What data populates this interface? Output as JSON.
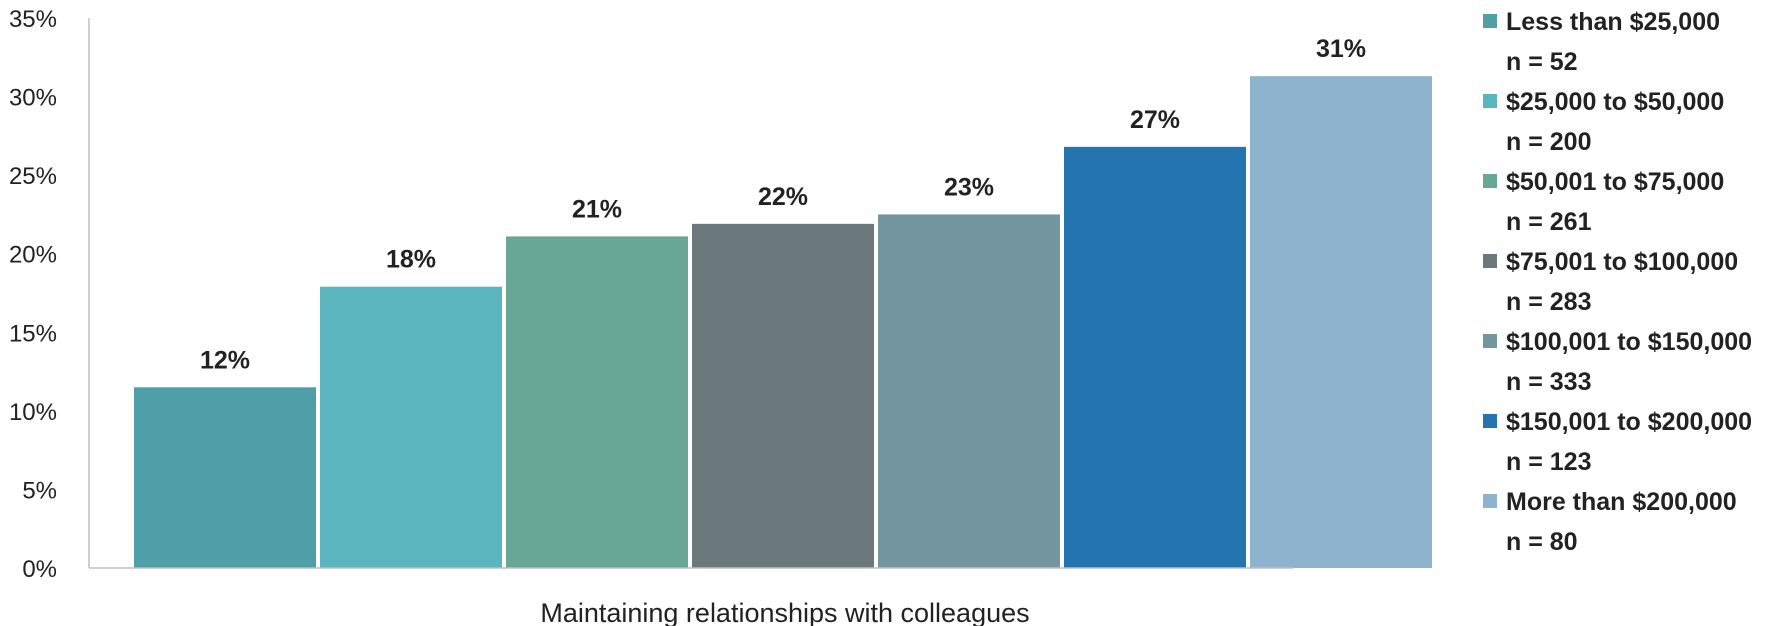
{
  "chart_data": {
    "type": "bar",
    "title": "",
    "xlabel": "Maintaining relationships with colleagues",
    "ylabel": "",
    "ylim": [
      0,
      35
    ],
    "yticks": [
      0,
      5,
      10,
      15,
      20,
      25,
      30,
      35
    ],
    "ytick_suffix": "%",
    "grid": false,
    "legend_position": "right",
    "series": [
      {
        "name": "Less than $25,000",
        "n_label": "n = 52",
        "value": 11.5,
        "label": "12%",
        "color": "#4e9fa8"
      },
      {
        "name": "$25,000 to $50,000",
        "n_label": "n = 200",
        "value": 17.9,
        "label": "18%",
        "color": "#5ab5bf"
      },
      {
        "name": "$50,001 to $75,000",
        "n_label": "n = 261",
        "value": 21.1,
        "label": "21%",
        "color": "#68a793"
      },
      {
        "name": "$75,001 to $100,000",
        "n_label": "n = 283",
        "value": 21.9,
        "label": "22%",
        "color": "#6c797c"
      },
      {
        "name": "$100,001 to $150,000",
        "n_label": "n = 333",
        "value": 22.5,
        "label": "23%",
        "color": "#74969e"
      },
      {
        "name": "$150,001 to $200,000",
        "n_label": "n = 123",
        "value": 26.8,
        "label": "27%",
        "color": "#2474b0"
      },
      {
        "name": "More than $200,000",
        "n_label": "n = 80",
        "value": 31.3,
        "label": "31%",
        "color": "#8db3ce"
      }
    ]
  }
}
